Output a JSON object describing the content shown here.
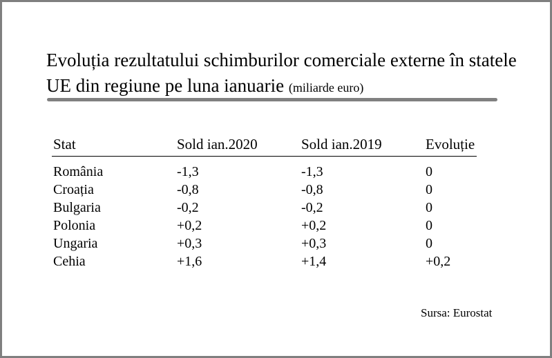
{
  "title": {
    "text": "Evoluția rezultatului schimburilor comerciale externe în statele UE din regiune pe luna ianuarie",
    "unit": "(miliarde euro)"
  },
  "table": {
    "columns": [
      "Stat",
      "Sold ian.2020",
      "Sold ian.2019",
      "Evoluție"
    ],
    "rows": [
      [
        "România",
        "-1,3",
        "-1,3",
        "0"
      ],
      [
        "Croația",
        "-0,8",
        "-0,8",
        "0"
      ],
      [
        "Bulgaria",
        "-0,2",
        "-0,2",
        "0"
      ],
      [
        "Polonia",
        "+0,2",
        "+0,2",
        "0"
      ],
      [
        "Ungaria",
        "+0,3",
        "+0,3",
        "0"
      ],
      [
        "Cehia",
        "+1,6",
        "+1,4",
        "+0,2"
      ]
    ]
  },
  "source": "Sursa: Eurostat"
}
